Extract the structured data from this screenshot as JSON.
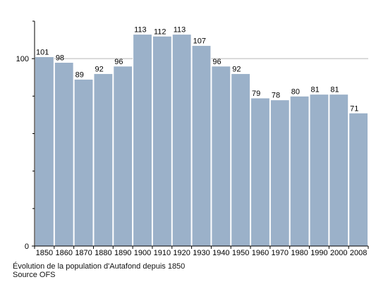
{
  "chart_data": {
    "type": "bar",
    "categories": [
      "1850",
      "1860",
      "1870",
      "1880",
      "1890",
      "1900",
      "1910",
      "1920",
      "1930",
      "1940",
      "1950",
      "1960",
      "1970",
      "1980",
      "1990",
      "2000",
      "2008"
    ],
    "values": [
      101,
      98,
      89,
      92,
      96,
      113,
      112,
      113,
      107,
      96,
      92,
      79,
      78,
      80,
      81,
      81,
      71
    ],
    "data_labels": [
      "101",
      "98",
      "89",
      "92",
      "96",
      "113",
      "112",
      "113",
      "107",
      "96",
      "92",
      "79",
      "78",
      "80",
      "81",
      "81",
      "71"
    ],
    "y_ticks": [
      0,
      100
    ],
    "y_tick_labels": [
      "0",
      "100"
    ],
    "y_minor_ticks": [
      20,
      40,
      60,
      80,
      120
    ],
    "ylim": [
      0,
      120
    ],
    "grid": "horizontal at labeled ticks",
    "legend": "none",
    "title": "",
    "xlabel": "",
    "ylabel": ""
  },
  "caption": {
    "line1": "Évolution de la population d'Autafond depuis 1850",
    "line2": "Source OFS"
  },
  "colors": {
    "bar_fill": "#9bb1c9",
    "bar_stroke": "#ffffff",
    "axis": "#000000",
    "gridline": "#b8b8b8",
    "background": "#ffffff"
  }
}
